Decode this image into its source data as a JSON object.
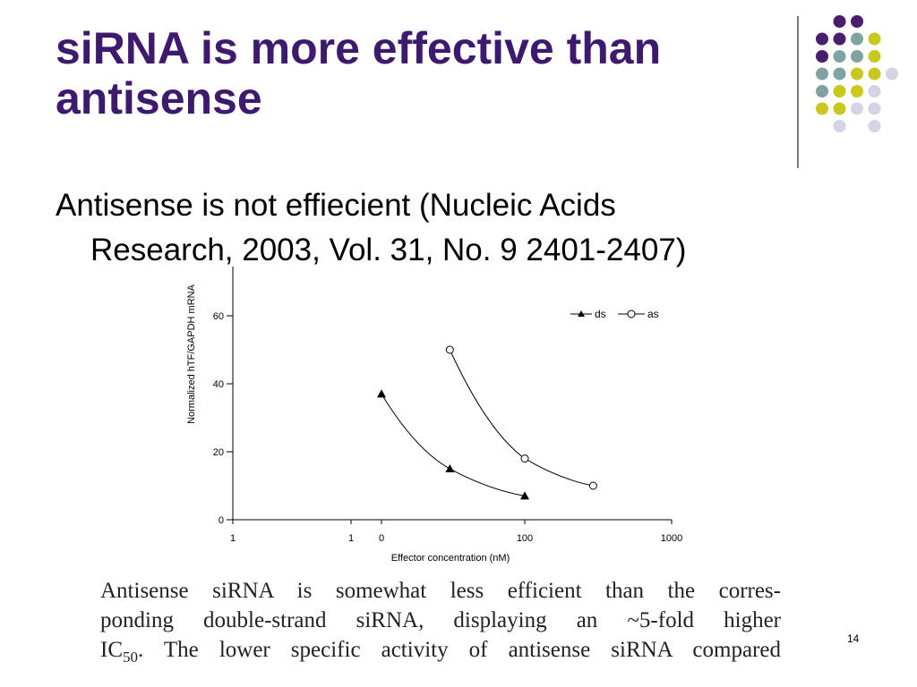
{
  "slide": {
    "title_line1": "siRNA is more effective than",
    "title_line2": "antisense",
    "bullet_line1": "Antisense is not effiecient (Nucleic Acids",
    "bullet_line2": "Research, 2003, Vol. 31, No. 9 2401-2407)",
    "caption_line1": "Antisense siRNA is somewhat less efficient than the corres-",
    "caption_line2": "ponding double-strand siRNA, displaying an ~5-fold higher",
    "caption_line3_pre": "IC",
    "caption_line3_sub": "50",
    "caption_line3_post": ". The lower specific activity of antisense siRNA compared",
    "page_number": "14",
    "colors": {
      "title": "#3d1a6e",
      "dot_purple": "#4a1e6e",
      "dot_teal": "#7fa3a0",
      "dot_yellow": "#c8c81e",
      "dot_lavender": "#d4d4e6"
    }
  },
  "chart_data": {
    "type": "line",
    "xlabel": "Effector concentration (nM)",
    "ylabel": "Normalized hTF/GAPDH mRNA",
    "x_scale": "log",
    "x_tick_labels": [
      "1",
      "1",
      "0",
      "100",
      "1000"
    ],
    "y_ticks": [
      0,
      20,
      40,
      60
    ],
    "ylim": [
      0,
      60
    ],
    "legend_position": "top-right",
    "series": [
      {
        "name": "ds",
        "marker": "filled-triangle",
        "points": [
          [
            10,
            37
          ],
          [
            30,
            15
          ],
          [
            100,
            7
          ]
        ]
      },
      {
        "name": "as",
        "marker": "open-circle",
        "points": [
          [
            30,
            50
          ],
          [
            100,
            18
          ],
          [
            300,
            10
          ]
        ]
      }
    ]
  }
}
